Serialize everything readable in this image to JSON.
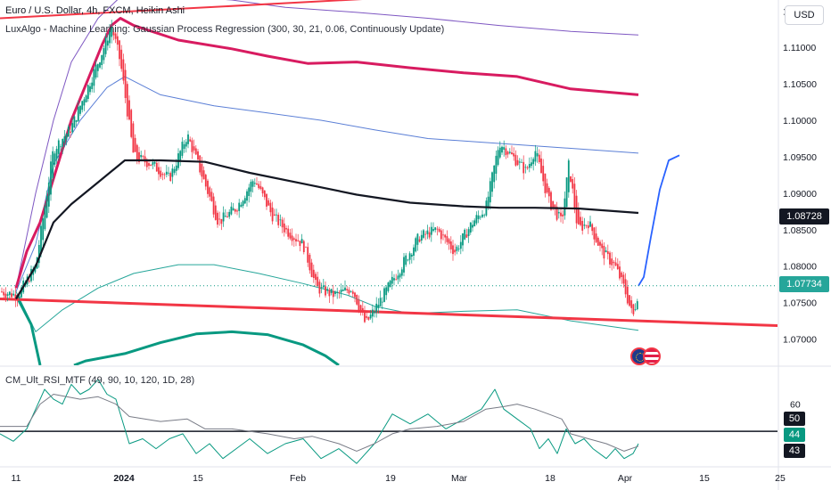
{
  "header": {
    "title": "Euro / U.S. Dollar, 4h, FXCM, Heikin Ashi",
    "indicator_main": "LuxAlgo - Machine Learning: Gaussian Process Regression (300, 30, 21, 0.06, Continuously Update)",
    "indicator_rsi": "CM_Ult_RSI_MTF (49, 90, 10, 120, 1D, 28)",
    "currency_button": "USD"
  },
  "colors": {
    "up": "#089981",
    "down": "#f23645",
    "regression": "#131722",
    "upper_band_inner": "#5b7fd6",
    "upper_band_outer": "#7e57c2",
    "upper_band_thick": "#d81b60",
    "lower_band_inner": "#26a69a",
    "lower_band_outer": "#089981",
    "trendline": "#f23645",
    "forecast": "#2962ff",
    "rsi_line": "#089981",
    "rsi_signal": "#787b86",
    "rsi_level": "#131722"
  },
  "chart_data": [
    {
      "type": "candlestick",
      "title": "Euro / U.S. Dollar, 4h, FXCM, Heikin Ashi",
      "x_ticks": [
        "11",
        "2024",
        "15",
        "Feb",
        "19",
        "Mar",
        "18",
        "Apr",
        "15",
        "25"
      ],
      "y_ticks": [
        "1.11500",
        "1.11000",
        "1.10500",
        "1.10000",
        "1.09500",
        "1.09000",
        "1.08500",
        "1.08000",
        "1.07500",
        "1.07000"
      ],
      "ylim": [
        1.0664,
        1.1165
      ],
      "grid": false,
      "price_labels": {
        "regression_last": "1.08728",
        "close_last": "1.07734"
      },
      "anchors": {
        "close": [
          [
            0,
            1.0765
          ],
          [
            20,
            1.076
          ],
          [
            40,
            1.08
          ],
          [
            60,
            1.096
          ],
          [
            80,
            1.099
          ],
          [
            100,
            1.105
          ],
          [
            115,
            1.1095
          ],
          [
            125,
            1.113
          ],
          [
            135,
            1.108
          ],
          [
            150,
            1.095
          ],
          [
            170,
            1.094
          ],
          [
            190,
            1.092
          ],
          [
            210,
            1.098
          ],
          [
            225,
            1.093
          ],
          [
            245,
            1.086
          ],
          [
            265,
            1.088
          ],
          [
            285,
            1.092
          ],
          [
            305,
            1.087
          ],
          [
            320,
            1.085
          ],
          [
            340,
            1.083
          ],
          [
            355,
            1.077
          ],
          [
            375,
            1.076
          ],
          [
            395,
            1.077
          ],
          [
            410,
            1.072
          ],
          [
            430,
            1.076
          ],
          [
            450,
            1.08
          ],
          [
            470,
            1.084
          ],
          [
            490,
            1.085
          ],
          [
            510,
            1.082
          ],
          [
            530,
            1.086
          ],
          [
            545,
            1.088
          ],
          [
            560,
            1.097
          ],
          [
            575,
            1.095
          ],
          [
            590,
            1.093
          ],
          [
            600,
            1.096
          ],
          [
            615,
            1.089
          ],
          [
            630,
            1.086
          ],
          [
            638,
            1.094
          ],
          [
            648,
            1.085
          ],
          [
            660,
            1.086
          ],
          [
            675,
            1.082
          ],
          [
            690,
            1.08
          ],
          [
            700,
            1.077
          ],
          [
            710,
            1.073
          ],
          [
            717,
            1.0773
          ]
        ]
      },
      "series": [
        {
          "name": "",
          "role": "regression",
          "points": [
            [
              18,
              1.0755
            ],
            [
              40,
              1.08
            ],
            [
              60,
              1.086
            ],
            [
              80,
              1.0885
            ],
            [
              110,
              1.0915
            ],
            [
              140,
              1.0945
            ],
            [
              180,
              1.0945
            ],
            [
              230,
              1.0943
            ],
            [
              280,
              1.0928
            ],
            [
              340,
              1.0913
            ],
            [
              400,
              1.0898
            ],
            [
              460,
              1.0887
            ],
            [
              520,
              1.0882
            ],
            [
              560,
              1.088
            ],
            [
              600,
              1.088
            ],
            [
              650,
              1.0879
            ],
            [
              716,
              1.0873
            ]
          ]
        },
        {
          "name": "",
          "role": "upper-inner",
          "points": [
            [
              18,
              1.0765
            ],
            [
              40,
              1.083
            ],
            [
              60,
              1.094
            ],
            [
              90,
              1.1
            ],
            [
              120,
              1.1045
            ],
            [
              140,
              1.106
            ],
            [
              180,
              1.1035
            ],
            [
              240,
              1.102
            ],
            [
              300,
              1.101
            ],
            [
              360,
              1.1
            ],
            [
              420,
              1.0987
            ],
            [
              480,
              1.0975
            ],
            [
              540,
              1.097
            ],
            [
              600,
              1.0965
            ],
            [
              716,
              1.0955
            ]
          ]
        },
        {
          "name": "",
          "role": "upper-outer",
          "points": [
            [
              18,
              1.077
            ],
            [
              40,
              1.09
            ],
            [
              60,
              1.1
            ],
            [
              80,
              1.108
            ],
            [
              110,
              1.114
            ],
            [
              140,
              1.1175
            ],
            [
              200,
              1.117
            ],
            [
              260,
              1.1165
            ],
            [
              320,
              1.1155
            ],
            [
              400,
              1.1148
            ],
            [
              480,
              1.114
            ],
            [
              560,
              1.113
            ],
            [
              640,
              1.1122
            ],
            [
              716,
              1.1117
            ]
          ]
        },
        {
          "name": "",
          "role": "upper-thick",
          "points": [
            [
              18,
              1.077
            ],
            [
              30,
              1.082
            ],
            [
              45,
              1.086
            ],
            [
              60,
              1.092
            ],
            [
              80,
              1.1
            ],
            [
              100,
              1.106
            ],
            [
              115,
              1.1105
            ],
            [
              125,
              1.113
            ],
            [
              135,
              1.114
            ],
            [
              150,
              1.113
            ],
            [
              200,
              1.111
            ],
            [
              260,
              1.1098
            ],
            [
              300,
              1.1088
            ],
            [
              345,
              1.1078
            ],
            [
              400,
              1.108
            ],
            [
              460,
              1.1072
            ],
            [
              520,
              1.1065
            ],
            [
              580,
              1.106
            ],
            [
              640,
              1.1043
            ],
            [
              716,
              1.1035
            ]
          ]
        },
        {
          "name": "",
          "role": "lower-inner",
          "points": [
            [
              18,
              1.0765
            ],
            [
              40,
              1.071
            ],
            [
              70,
              1.074
            ],
            [
              110,
              1.077
            ],
            [
              150,
              1.079
            ],
            [
              200,
              1.0802
            ],
            [
              240,
              1.0802
            ],
            [
              290,
              1.079
            ],
            [
              340,
              1.0776
            ],
            [
              390,
              1.076
            ],
            [
              420,
              1.0745
            ],
            [
              460,
              1.0735
            ],
            [
              520,
              1.0738
            ],
            [
              580,
              1.074
            ],
            [
              640,
              1.0725
            ],
            [
              716,
              1.0712
            ]
          ]
        },
        {
          "name": "",
          "role": "lower-outer",
          "points": [
            [
              18,
              1.076
            ],
            [
              35,
              1.072
            ],
            [
              45,
              1.0664
            ]
          ]
        },
        {
          "name": "",
          "role": "lower-thick",
          "points": [
            [
              83,
              1.0664
            ],
            [
              96,
              1.067
            ],
            [
              140,
              1.068
            ],
            [
              180,
              1.0695
            ],
            [
              220,
              1.0707
            ],
            [
              260,
              1.071
            ],
            [
              300,
              1.0706
            ],
            [
              340,
              1.0692
            ],
            [
              365,
              1.0677
            ],
            [
              380,
              1.0664
            ]
          ]
        },
        {
          "name": "",
          "role": "forecast",
          "points": [
            [
              716,
              1.0773
            ],
            [
              722,
              1.0785
            ],
            [
              730,
              1.084
            ],
            [
              740,
              1.0905
            ],
            [
              750,
              1.0945
            ],
            [
              762,
              1.0952
            ]
          ]
        },
        {
          "name": "",
          "role": "upper-trendline",
          "points": [
            [
              0,
              1.114
            ],
            [
              620,
              1.118
            ]
          ]
        },
        {
          "name": "",
          "role": "lower-trendline",
          "points": [
            [
              0,
              1.0755
            ],
            [
              880,
              1.0718
            ]
          ]
        }
      ]
    },
    {
      "type": "line",
      "title": "CM_Ult_RSI_MTF (49, 90, 10, 120, 1D, 28)",
      "y_ticks": [
        "60"
      ],
      "ylim": [
        35,
        75
      ],
      "levels": [
        49
      ],
      "value_labels": [
        "50",
        "44",
        "43"
      ],
      "series": [
        {
          "name": "",
          "role": "rsi",
          "points": [
            [
              0,
              48
            ],
            [
              15,
              45
            ],
            [
              30,
              50
            ],
            [
              40,
              58
            ],
            [
              50,
              66
            ],
            [
              60,
              62
            ],
            [
              70,
              60
            ],
            [
              80,
              68
            ],
            [
              90,
              64
            ],
            [
              100,
              66
            ],
            [
              110,
              70
            ],
            [
              120,
              64
            ],
            [
              130,
              62
            ],
            [
              145,
              44
            ],
            [
              160,
              46
            ],
            [
              175,
              42
            ],
            [
              190,
              46
            ],
            [
              205,
              48
            ],
            [
              220,
              40
            ],
            [
              235,
              44
            ],
            [
              250,
              38
            ],
            [
              265,
              42
            ],
            [
              280,
              46
            ],
            [
              300,
              40
            ],
            [
              320,
              44
            ],
            [
              340,
              46
            ],
            [
              360,
              38
            ],
            [
              380,
              42
            ],
            [
              400,
              36
            ],
            [
              420,
              44
            ],
            [
              440,
              56
            ],
            [
              460,
              52
            ],
            [
              480,
              56
            ],
            [
              500,
              50
            ],
            [
              520,
              54
            ],
            [
              540,
              58
            ],
            [
              555,
              66
            ],
            [
              565,
              58
            ],
            [
              580,
              54
            ],
            [
              595,
              50
            ],
            [
              605,
              42
            ],
            [
              615,
              46
            ],
            [
              625,
              40
            ],
            [
              635,
              50
            ],
            [
              645,
              44
            ],
            [
              655,
              46
            ],
            [
              665,
              42
            ],
            [
              680,
              38
            ],
            [
              690,
              42
            ],
            [
              700,
              38
            ],
            [
              710,
              40
            ],
            [
              716,
              44
            ]
          ]
        },
        {
          "name": "",
          "role": "signal",
          "points": [
            [
              0,
              51
            ],
            [
              30,
              51
            ],
            [
              45,
              60
            ],
            [
              60,
              64
            ],
            [
              90,
              62
            ],
            [
              110,
              63
            ],
            [
              130,
              60
            ],
            [
              145,
              55
            ],
            [
              180,
              53
            ],
            [
              210,
              54
            ],
            [
              230,
              50
            ],
            [
              260,
              50
            ],
            [
              300,
              48
            ],
            [
              330,
              46
            ],
            [
              350,
              47
            ],
            [
              380,
              44
            ],
            [
              400,
              41
            ],
            [
              420,
              44
            ],
            [
              440,
              48
            ],
            [
              460,
              50
            ],
            [
              490,
              51
            ],
            [
              520,
              53
            ],
            [
              545,
              58
            ],
            [
              565,
              59
            ],
            [
              580,
              60
            ],
            [
              600,
              58
            ],
            [
              615,
              56
            ],
            [
              630,
              54
            ],
            [
              640,
              48
            ],
            [
              660,
              46
            ],
            [
              680,
              44
            ],
            [
              700,
              41
            ],
            [
              716,
              43
            ]
          ]
        }
      ]
    }
  ]
}
